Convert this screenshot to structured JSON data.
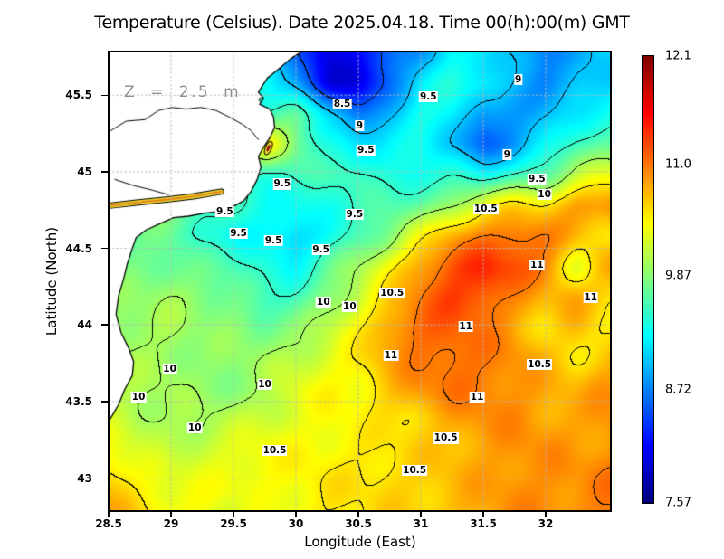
{
  "title": "Temperature (Celsius). Date 2025.04.18. Time 00(h):00(m) GMT",
  "annotation": "Z = 2.5 m",
  "axes": {
    "x": {
      "label": "Longitude (East)",
      "ticks": [
        {
          "v": 28.5,
          "t": "28.5"
        },
        {
          "v": 29,
          "t": "29"
        },
        {
          "v": 29.5,
          "t": "29.5"
        },
        {
          "v": 30,
          "t": "30"
        },
        {
          "v": 30.5,
          "t": "30.5"
        },
        {
          "v": 31,
          "t": "31"
        },
        {
          "v": 31.5,
          "t": "31.5"
        },
        {
          "v": 32,
          "t": "32"
        }
      ],
      "min": 28.5,
      "max": 32.52
    },
    "y": {
      "label": "Latitude (North)",
      "ticks": [
        {
          "v": 45.5,
          "t": "45.5"
        },
        {
          "v": 45,
          "t": "45"
        },
        {
          "v": 44.5,
          "t": "44.5"
        },
        {
          "v": 44,
          "t": "44"
        },
        {
          "v": 43.5,
          "t": "43.5"
        },
        {
          "v": 43,
          "t": "43"
        }
      ],
      "min": 42.78,
      "max": 45.785
    }
  },
  "colorbar": {
    "min": 7.57,
    "max": 12.1,
    "labels": [
      {
        "v": 12.1,
        "t": "12.1"
      },
      {
        "v": 11.0,
        "t": "11.0"
      },
      {
        "v": 9.87,
        "t": "9.87"
      },
      {
        "v": 8.72,
        "t": "8.72"
      },
      {
        "v": 7.57,
        "t": "7.57"
      }
    ],
    "colormap": "jet"
  },
  "chart_data": {
    "type": "heatmap",
    "title": "Temperature (Celsius). Date 2025.04.18. Time 00(h):00(m) GMT",
    "xlabel": "Longitude (East)",
    "ylabel": "Latitude (North)",
    "x_range": [
      28.5,
      32.52
    ],
    "y_range": [
      42.78,
      45.785
    ],
    "value_range": [
      7.57,
      12.1
    ],
    "gridlines": {
      "lon": [
        29,
        29.5,
        30,
        30.5,
        31,
        31.5,
        32
      ],
      "lat": [
        43,
        43.5,
        44,
        44.5,
        45,
        45.5
      ]
    },
    "contour_levels": [
      8.5,
      9,
      9.5,
      10,
      10.5,
      11
    ],
    "grid": {
      "lon_start": 28.5,
      "lon_step": 0.25,
      "nlon": 17,
      "lat_start": 45.78,
      "lat_step": -0.2,
      "nlat": 16,
      "values": [
        [
          9.4,
          9.4,
          9.4,
          9.4,
          9.4,
          9.2,
          8.6,
          8.0,
          8.2,
          8.5,
          8.8,
          9.3,
          9.2,
          8.9,
          8.7,
          8.9,
          9.1
        ],
        [
          9.5,
          9.5,
          9.5,
          9.5,
          9.5,
          9.4,
          8.8,
          7.9,
          8.0,
          8.6,
          9.2,
          9.4,
          9.3,
          9.0,
          8.7,
          8.95,
          9.1
        ],
        [
          9.6,
          9.6,
          9.6,
          9.6,
          9.6,
          9.5,
          9.8,
          9.2,
          8.5,
          9.0,
          9.4,
          9.3,
          8.7,
          8.8,
          9.0,
          9.2,
          9.3
        ],
        [
          9.6,
          9.6,
          9.6,
          9.6,
          9.7,
          10.6,
          9.8,
          9.4,
          9.2,
          9.2,
          9.3,
          9.0,
          8.5,
          8.8,
          9.2,
          9.6,
          9.7
        ],
        [
          9.6,
          9.6,
          9.6,
          9.6,
          9.5,
          9.4,
          9.6,
          9.5,
          9.6,
          9.4,
          9.4,
          9.4,
          9.3,
          9.5,
          9.7,
          10.1,
          10.3
        ],
        [
          9.8,
          9.9,
          9.9,
          9.7,
          9.5,
          9.3,
          9.3,
          9.4,
          9.5,
          9.6,
          9.7,
          10.0,
          10.4,
          10.6,
          10.5,
          10.9,
          11.0
        ],
        [
          9.7,
          9.7,
          9.7,
          9.4,
          9.3,
          9.3,
          9.0,
          9.3,
          9.6,
          9.9,
          10.4,
          10.8,
          11.0,
          11.1,
          11.0,
          10.7,
          10.4
        ],
        [
          9.8,
          9.8,
          9.8,
          9.7,
          9.6,
          9.4,
          9.3,
          9.7,
          10.0,
          10.4,
          10.9,
          11.2,
          11.4,
          11.2,
          11.0,
          10.2,
          10.8
        ],
        [
          9.9,
          9.9,
          10.0,
          9.9,
          9.8,
          9.5,
          9.5,
          9.9,
          10.2,
          10.6,
          11.0,
          11.3,
          11.2,
          10.9,
          10.7,
          10.8,
          10.6
        ],
        [
          10.0,
          10.0,
          10.0,
          9.9,
          9.9,
          9.8,
          9.9,
          10.1,
          10.4,
          10.9,
          11.1,
          11.1,
          11.0,
          10.8,
          10.5,
          10.7,
          10.4
        ],
        [
          10.0,
          10.0,
          10.0,
          9.9,
          9.9,
          10.0,
          10.1,
          10.3,
          10.5,
          10.8,
          11.0,
          11.1,
          11.0,
          10.9,
          10.7,
          10.5,
          10.7
        ],
        [
          10.1,
          10.0,
          10.0,
          9.9,
          9.9,
          10.0,
          10.3,
          10.4,
          10.4,
          10.7,
          10.9,
          11.0,
          11.0,
          10.9,
          10.8,
          10.7,
          10.9
        ],
        [
          10.2,
          10.1,
          10.0,
          10.0,
          10.1,
          10.2,
          10.3,
          10.4,
          10.4,
          10.5,
          10.6,
          10.8,
          10.9,
          10.9,
          10.8,
          10.8,
          10.9
        ],
        [
          10.4,
          10.2,
          10.1,
          10.2,
          10.3,
          10.4,
          10.4,
          10.4,
          10.5,
          10.5,
          10.6,
          10.7,
          10.8,
          10.9,
          10.9,
          10.8,
          10.9
        ],
        [
          10.7,
          10.4,
          10.3,
          10.3,
          10.4,
          10.4,
          10.4,
          10.5,
          10.5,
          10.6,
          10.6,
          10.7,
          10.8,
          10.9,
          10.9,
          10.9,
          11.0
        ],
        [
          10.8,
          10.6,
          10.4,
          10.4,
          10.2,
          10.3,
          10.4,
          10.5,
          10.5,
          10.6,
          10.6,
          10.7,
          10.8,
          10.9,
          10.9,
          10.9,
          11.0
        ]
      ]
    },
    "contour_labels": [
      {
        "t": "8.5",
        "lon": 30.37,
        "lat": 45.44
      },
      {
        "t": "9",
        "lon": 30.51,
        "lat": 45.3
      },
      {
        "t": "9.5",
        "lon": 30.56,
        "lat": 45.14
      },
      {
        "t": "9",
        "lon": 31.78,
        "lat": 45.6
      },
      {
        "t": "9.5",
        "lon": 31.06,
        "lat": 45.49
      },
      {
        "t": "9",
        "lon": 31.69,
        "lat": 45.11
      },
      {
        "t": "9.5",
        "lon": 31.93,
        "lat": 44.95
      },
      {
        "t": "10",
        "lon": 31.99,
        "lat": 44.85
      },
      {
        "t": "10.5",
        "lon": 31.52,
        "lat": 44.76
      },
      {
        "t": "9.5",
        "lon": 29.89,
        "lat": 44.92
      },
      {
        "t": "9.5",
        "lon": 29.43,
        "lat": 44.74
      },
      {
        "t": "9.5",
        "lon": 29.54,
        "lat": 44.6
      },
      {
        "t": "9.5",
        "lon": 29.82,
        "lat": 44.55
      },
      {
        "t": "9.5",
        "lon": 30.2,
        "lat": 44.49
      },
      {
        "t": "9.5",
        "lon": 30.47,
        "lat": 44.72
      },
      {
        "t": "10",
        "lon": 30.22,
        "lat": 44.15
      },
      {
        "t": "10",
        "lon": 30.43,
        "lat": 44.12
      },
      {
        "t": "10.5",
        "lon": 30.77,
        "lat": 44.21
      },
      {
        "t": "11",
        "lon": 31.36,
        "lat": 43.99
      },
      {
        "t": "11",
        "lon": 30.76,
        "lat": 43.8
      },
      {
        "t": "11",
        "lon": 31.45,
        "lat": 43.53
      },
      {
        "t": "11",
        "lon": 31.93,
        "lat": 44.39
      },
      {
        "t": "11",
        "lon": 32.36,
        "lat": 44.18
      },
      {
        "t": "10.5",
        "lon": 31.95,
        "lat": 43.74
      },
      {
        "t": "10",
        "lon": 28.99,
        "lat": 43.71
      },
      {
        "t": "10",
        "lon": 28.74,
        "lat": 43.53
      },
      {
        "t": "10",
        "lon": 29.75,
        "lat": 43.61
      },
      {
        "t": "10",
        "lon": 29.19,
        "lat": 43.33
      },
      {
        "t": "10.5",
        "lon": 31.2,
        "lat": 43.26
      },
      {
        "t": "10.5",
        "lon": 29.83,
        "lat": 43.18
      },
      {
        "t": "10.5",
        "lon": 30.95,
        "lat": 43.05
      }
    ],
    "land_polygons": [
      [
        [
          28.5,
          45.79
        ],
        [
          30.06,
          45.79
        ],
        [
          29.96,
          45.74
        ],
        [
          29.86,
          45.67
        ],
        [
          29.77,
          45.61
        ],
        [
          29.73,
          45.56
        ],
        [
          29.7,
          45.52
        ],
        [
          29.74,
          45.48
        ],
        [
          29.71,
          45.44
        ],
        [
          29.79,
          45.41
        ],
        [
          29.82,
          45.36
        ],
        [
          29.83,
          45.29
        ],
        [
          29.79,
          45.22
        ],
        [
          29.74,
          45.16
        ],
        [
          29.7,
          45.1
        ],
        [
          29.72,
          45.03
        ],
        [
          29.69,
          44.95
        ],
        [
          29.64,
          44.87
        ],
        [
          29.58,
          44.81
        ],
        [
          29.49,
          44.77
        ],
        [
          29.38,
          44.74
        ],
        [
          29.27,
          44.73
        ],
        [
          29.14,
          44.71
        ],
        [
          29.02,
          44.7
        ],
        [
          28.91,
          44.66
        ],
        [
          28.8,
          44.62
        ],
        [
          28.72,
          44.57
        ],
        [
          28.69,
          44.5
        ],
        [
          28.65,
          44.4
        ],
        [
          28.62,
          44.3
        ],
        [
          28.58,
          44.19
        ],
        [
          28.56,
          44.07
        ],
        [
          28.6,
          43.95
        ],
        [
          28.66,
          43.85
        ],
        [
          28.7,
          43.76
        ],
        [
          28.69,
          43.67
        ],
        [
          28.63,
          43.58
        ],
        [
          28.58,
          43.48
        ],
        [
          28.53,
          43.41
        ],
        [
          28.5,
          43.37
        ]
      ]
    ],
    "rivers": [
      [
        [
          28.5,
          45.26
        ],
        [
          28.64,
          45.33
        ],
        [
          28.79,
          45.34
        ],
        [
          28.9,
          45.4
        ],
        [
          29.01,
          45.42
        ],
        [
          29.12,
          45.41
        ],
        [
          29.24,
          45.42
        ],
        [
          29.36,
          45.4
        ],
        [
          29.46,
          45.36
        ],
        [
          29.57,
          45.31
        ],
        [
          29.64,
          45.27
        ],
        [
          29.7,
          45.21
        ]
      ],
      [
        [
          28.55,
          44.95
        ],
        [
          28.7,
          44.91
        ],
        [
          28.85,
          44.88
        ],
        [
          28.98,
          44.85
        ]
      ]
    ],
    "lagoon_band": [
      [
        28.52,
        44.78
      ],
      [
        28.74,
        44.8
      ],
      [
        28.98,
        44.82
      ],
      [
        29.18,
        44.84
      ],
      [
        29.4,
        44.87
      ]
    ],
    "warm_spot": {
      "lon": 29.78,
      "lat": 45.155
    },
    "green_spot": {
      "lon": 29.72,
      "lat": 45.47
    },
    "colors": {
      "land": "#ffffff",
      "coastline": "#000000",
      "contour": "#000000",
      "gridline": "#b8b8b8",
      "lagoon_outer": "#edd62c",
      "lagoon_core": "#e07818",
      "warm_core": "#8c0b0b"
    }
  }
}
